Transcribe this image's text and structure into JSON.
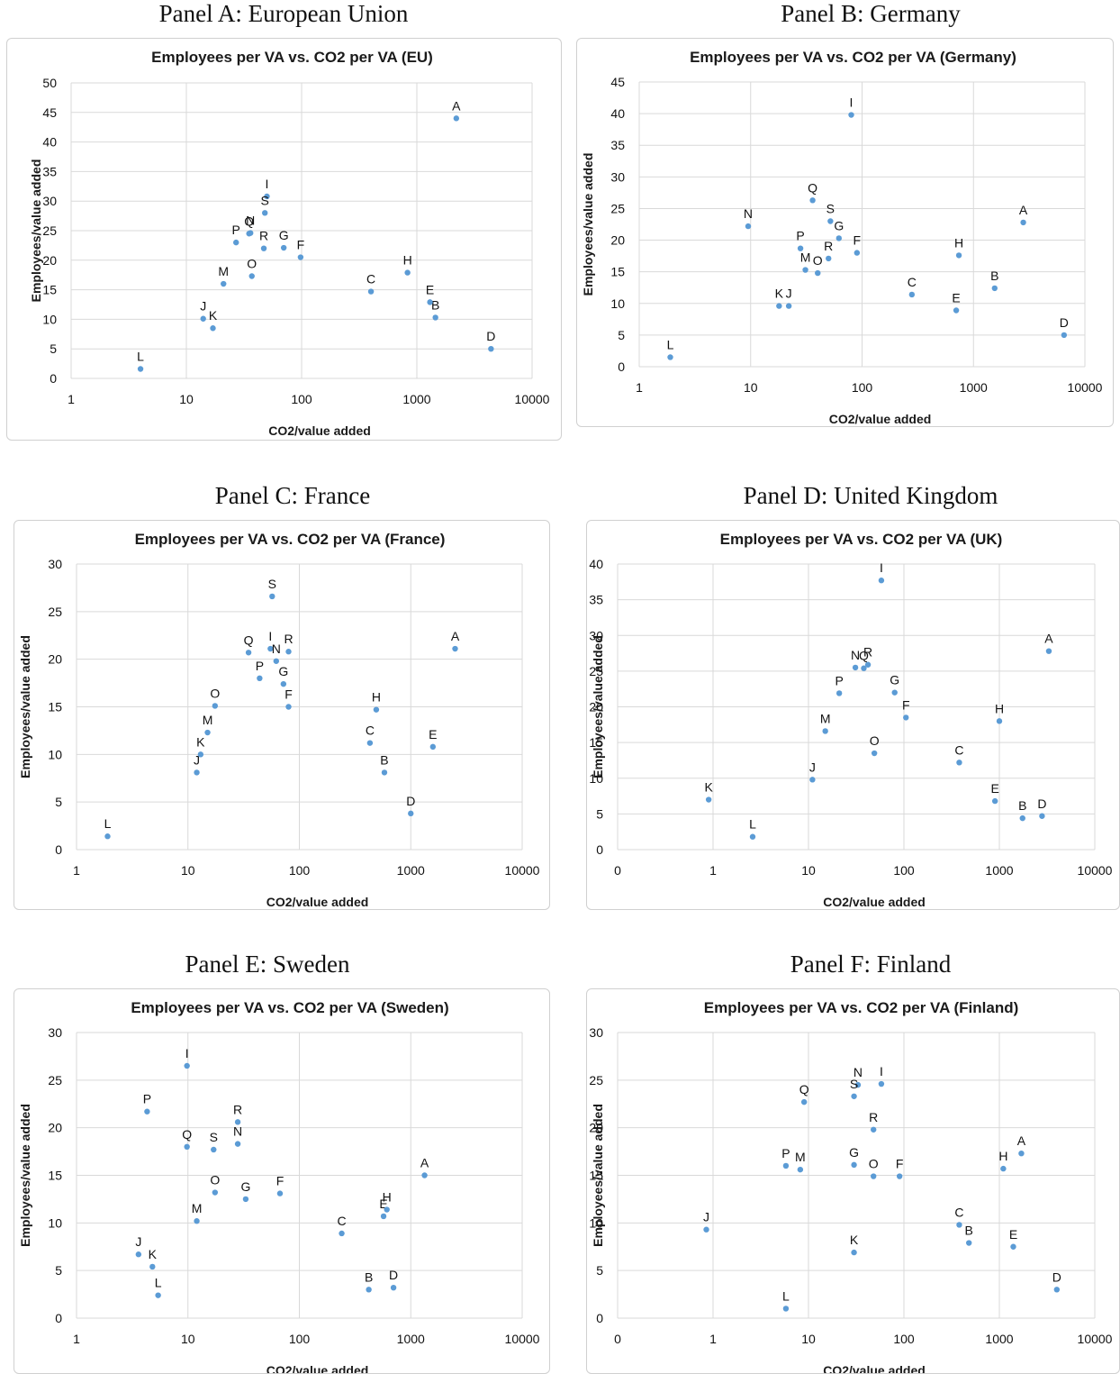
{
  "marker_color": "#5B9BD5",
  "panels": [
    {
      "heading": "Panel A: European Union"
    },
    {
      "heading": "Panel B: Germany"
    },
    {
      "heading": "Panel C: France"
    },
    {
      "heading": "Panel D: United Kingdom"
    },
    {
      "heading": "Panel E: Sweden"
    },
    {
      "heading": "Panel F: Finland"
    }
  ],
  "chart_data": [
    {
      "type": "scatter",
      "title": "Employees per VA vs. CO2 per VA (EU)",
      "xlabel": "CO2/value added",
      "ylabel": "Employees/value added",
      "x_scale": "log",
      "xlim": [
        1,
        10000
      ],
      "x_ticks": [
        "1",
        "10",
        "100",
        "1000",
        "10000"
      ],
      "ylim": [
        0,
        50
      ],
      "y_ticks": [
        "0",
        "5",
        "10",
        "15",
        "20",
        "25",
        "30",
        "35",
        "40",
        "45",
        "50"
      ],
      "grid": true,
      "points": [
        {
          "label": "A",
          "x": 2200,
          "y": 44
        },
        {
          "label": "B",
          "x": 1450,
          "y": 10.3
        },
        {
          "label": "C",
          "x": 400,
          "y": 14.7
        },
        {
          "label": "D",
          "x": 4400,
          "y": 5
        },
        {
          "label": "E",
          "x": 1300,
          "y": 12.9
        },
        {
          "label": "F",
          "x": 98,
          "y": 20.5
        },
        {
          "label": "G",
          "x": 70,
          "y": 22.1
        },
        {
          "label": "H",
          "x": 830,
          "y": 17.9
        },
        {
          "label": "I",
          "x": 50,
          "y": 30.8
        },
        {
          "label": "J",
          "x": 14,
          "y": 10.1
        },
        {
          "label": "K",
          "x": 17,
          "y": 8.5
        },
        {
          "label": "L",
          "x": 4,
          "y": 1.6
        },
        {
          "label": "M",
          "x": 21,
          "y": 16
        },
        {
          "label": "N",
          "x": 36,
          "y": 24.6
        },
        {
          "label": "O",
          "x": 37,
          "y": 17.3
        },
        {
          "label": "P",
          "x": 27,
          "y": 23
        },
        {
          "label": "Q",
          "x": 35,
          "y": 24.5
        },
        {
          "label": "R",
          "x": 47,
          "y": 22
        },
        {
          "label": "S",
          "x": 48,
          "y": 28
        }
      ]
    },
    {
      "type": "scatter",
      "title": "Employees per VA vs. CO2 per VA (Germany)",
      "xlabel": "CO2/value added",
      "ylabel": "Employees/value added",
      "x_scale": "log",
      "xlim": [
        1,
        10000
      ],
      "x_ticks": [
        "1",
        "10",
        "100",
        "1000",
        "10000"
      ],
      "ylim": [
        0,
        45
      ],
      "y_ticks": [
        "0",
        "5",
        "10",
        "15",
        "20",
        "25",
        "30",
        "35",
        "40",
        "45"
      ],
      "grid": true,
      "points": [
        {
          "label": "A",
          "x": 2800,
          "y": 22.8
        },
        {
          "label": "B",
          "x": 1550,
          "y": 12.4
        },
        {
          "label": "C",
          "x": 280,
          "y": 11.4
        },
        {
          "label": "D",
          "x": 6500,
          "y": 5
        },
        {
          "label": "E",
          "x": 700,
          "y": 8.9
        },
        {
          "label": "F",
          "x": 90,
          "y": 18
        },
        {
          "label": "G",
          "x": 62,
          "y": 20.3
        },
        {
          "label": "H",
          "x": 740,
          "y": 17.6
        },
        {
          "label": "I",
          "x": 80,
          "y": 39.8
        },
        {
          "label": "J",
          "x": 22,
          "y": 9.6
        },
        {
          "label": "K",
          "x": 18,
          "y": 9.6
        },
        {
          "label": "L",
          "x": 1.9,
          "y": 1.5
        },
        {
          "label": "M",
          "x": 31,
          "y": 15.3
        },
        {
          "label": "N",
          "x": 9.5,
          "y": 22.2
        },
        {
          "label": "O",
          "x": 40,
          "y": 14.8
        },
        {
          "label": "P",
          "x": 28,
          "y": 18.7
        },
        {
          "label": "Q",
          "x": 36,
          "y": 26.3
        },
        {
          "label": "R",
          "x": 50,
          "y": 17.1
        },
        {
          "label": "S",
          "x": 52,
          "y": 23
        }
      ]
    },
    {
      "type": "scatter",
      "title": "Employees per VA vs. CO2 per VA (France)",
      "xlabel": "CO2/value added",
      "ylabel": "Employees/value added",
      "x_scale": "log",
      "xlim": [
        1,
        10000
      ],
      "x_ticks": [
        "1",
        "10",
        "100",
        "1000",
        "10000"
      ],
      "ylim": [
        0,
        30
      ],
      "y_ticks": [
        "0",
        "5",
        "10",
        "15",
        "20",
        "25",
        "30"
      ],
      "grid": true,
      "points": [
        {
          "label": "A",
          "x": 2500,
          "y": 21.1
        },
        {
          "label": "B",
          "x": 580,
          "y": 8.1
        },
        {
          "label": "C",
          "x": 430,
          "y": 11.2
        },
        {
          "label": "D",
          "x": 1000,
          "y": 3.8
        },
        {
          "label": "E",
          "x": 1580,
          "y": 10.8
        },
        {
          "label": "F",
          "x": 80,
          "y": 15
        },
        {
          "label": "G",
          "x": 72,
          "y": 17.4
        },
        {
          "label": "H",
          "x": 490,
          "y": 14.7
        },
        {
          "label": "I",
          "x": 55,
          "y": 21.1
        },
        {
          "label": "J",
          "x": 12,
          "y": 8.1
        },
        {
          "label": "K",
          "x": 13,
          "y": 10
        },
        {
          "label": "L",
          "x": 1.9,
          "y": 1.4
        },
        {
          "label": "M",
          "x": 15,
          "y": 12.3
        },
        {
          "label": "N",
          "x": 62,
          "y": 19.8
        },
        {
          "label": "O",
          "x": 17.5,
          "y": 15.1
        },
        {
          "label": "P",
          "x": 44,
          "y": 18
        },
        {
          "label": "Q",
          "x": 35,
          "y": 20.7
        },
        {
          "label": "R",
          "x": 80,
          "y": 20.8
        },
        {
          "label": "S",
          "x": 57,
          "y": 26.6
        }
      ]
    },
    {
      "type": "scatter",
      "title": "Employees per VA vs. CO2 per VA (UK)",
      "xlabel": "CO2/value added",
      "ylabel": "Employees/value added",
      "x_scale": "log",
      "xlim": [
        0.1,
        10000
      ],
      "x_ticks": [
        "0",
        "1",
        "10",
        "100",
        "1000",
        "10000"
      ],
      "ylim": [
        0,
        40
      ],
      "y_ticks": [
        "0",
        "5",
        "10",
        "15",
        "20",
        "25",
        "30",
        "35",
        "40"
      ],
      "grid": true,
      "points": [
        {
          "label": "A",
          "x": 3300,
          "y": 27.8
        },
        {
          "label": "B",
          "x": 1750,
          "y": 4.4
        },
        {
          "label": "C",
          "x": 380,
          "y": 12.2
        },
        {
          "label": "D",
          "x": 2800,
          "y": 4.7
        },
        {
          "label": "E",
          "x": 900,
          "y": 6.8
        },
        {
          "label": "F",
          "x": 105,
          "y": 18.5
        },
        {
          "label": "G",
          "x": 80,
          "y": 22
        },
        {
          "label": "H",
          "x": 1000,
          "y": 18
        },
        {
          "label": "I",
          "x": 58,
          "y": 37.7
        },
        {
          "label": "J",
          "x": 11,
          "y": 9.8
        },
        {
          "label": "K",
          "x": 0.9,
          "y": 7
        },
        {
          "label": "L",
          "x": 2.6,
          "y": 1.8
        },
        {
          "label": "M",
          "x": 15,
          "y": 16.6
        },
        {
          "label": "N",
          "x": 31,
          "y": 25.5
        },
        {
          "label": "O",
          "x": 49,
          "y": 13.5
        },
        {
          "label": "P",
          "x": 21,
          "y": 21.9
        },
        {
          "label": "Q",
          "x": 38,
          "y": 25.4
        },
        {
          "label": "R",
          "x": 42,
          "y": 25.9
        }
      ]
    },
    {
      "type": "scatter",
      "title": "Employees per VA vs. CO2 per VA (Sweden)",
      "xlabel": "CO2/value added",
      "ylabel": "Employees/value added",
      "x_scale": "log",
      "xlim": [
        1,
        10000
      ],
      "x_ticks": [
        "1",
        "10",
        "100",
        "1000",
        "10000"
      ],
      "ylim": [
        0,
        30
      ],
      "y_ticks": [
        "0",
        "5",
        "10",
        "15",
        "20",
        "25",
        "30"
      ],
      "grid": true,
      "points": [
        {
          "label": "A",
          "x": 1330,
          "y": 15
        },
        {
          "label": "B",
          "x": 420,
          "y": 3
        },
        {
          "label": "C",
          "x": 240,
          "y": 8.9
        },
        {
          "label": "D",
          "x": 700,
          "y": 3.2
        },
        {
          "label": "E",
          "x": 570,
          "y": 10.7
        },
        {
          "label": "F",
          "x": 67,
          "y": 13.1
        },
        {
          "label": "G",
          "x": 33,
          "y": 12.5
        },
        {
          "label": "H",
          "x": 610,
          "y": 11.4
        },
        {
          "label": "I",
          "x": 9.8,
          "y": 26.5
        },
        {
          "label": "J",
          "x": 3.6,
          "y": 6.7
        },
        {
          "label": "K",
          "x": 4.8,
          "y": 5.4
        },
        {
          "label": "L",
          "x": 5.4,
          "y": 2.4
        },
        {
          "label": "M",
          "x": 12,
          "y": 10.2
        },
        {
          "label": "N",
          "x": 28,
          "y": 18.3
        },
        {
          "label": "O",
          "x": 17.5,
          "y": 13.2
        },
        {
          "label": "P",
          "x": 4.3,
          "y": 21.7
        },
        {
          "label": "Q",
          "x": 9.8,
          "y": 18
        },
        {
          "label": "R",
          "x": 28,
          "y": 20.6
        },
        {
          "label": "S",
          "x": 17,
          "y": 17.7
        }
      ]
    },
    {
      "type": "scatter",
      "title": "Employees per VA vs. CO2 per VA (Finland)",
      "xlabel": "CO2/value added",
      "ylabel": "Employees/value added",
      "x_scale": "log",
      "xlim": [
        0.1,
        10000
      ],
      "x_ticks": [
        "0",
        "1",
        "10",
        "100",
        "1000",
        "10000"
      ],
      "ylim": [
        0,
        30
      ],
      "y_ticks": [
        "0",
        "5",
        "10",
        "15",
        "20",
        "25",
        "30"
      ],
      "grid": true,
      "points": [
        {
          "label": "A",
          "x": 1700,
          "y": 17.3
        },
        {
          "label": "B",
          "x": 480,
          "y": 7.9
        },
        {
          "label": "C",
          "x": 380,
          "y": 9.8
        },
        {
          "label": "D",
          "x": 4000,
          "y": 3
        },
        {
          "label": "E",
          "x": 1400,
          "y": 7.5
        },
        {
          "label": "F",
          "x": 90,
          "y": 14.9
        },
        {
          "label": "G",
          "x": 30,
          "y": 16.1
        },
        {
          "label": "H",
          "x": 1100,
          "y": 15.7
        },
        {
          "label": "I",
          "x": 58,
          "y": 24.6
        },
        {
          "label": "J",
          "x": 0.85,
          "y": 9.3
        },
        {
          "label": "K",
          "x": 30,
          "y": 6.9
        },
        {
          "label": "L",
          "x": 5.8,
          "y": 1
        },
        {
          "label": "M",
          "x": 8.2,
          "y": 15.6
        },
        {
          "label": "N",
          "x": 33,
          "y": 24.5
        },
        {
          "label": "O",
          "x": 48,
          "y": 14.9
        },
        {
          "label": "P",
          "x": 5.8,
          "y": 16
        },
        {
          "label": "Q",
          "x": 9,
          "y": 22.7
        },
        {
          "label": "R",
          "x": 48,
          "y": 19.8
        },
        {
          "label": "S",
          "x": 30,
          "y": 23.3
        }
      ]
    }
  ]
}
